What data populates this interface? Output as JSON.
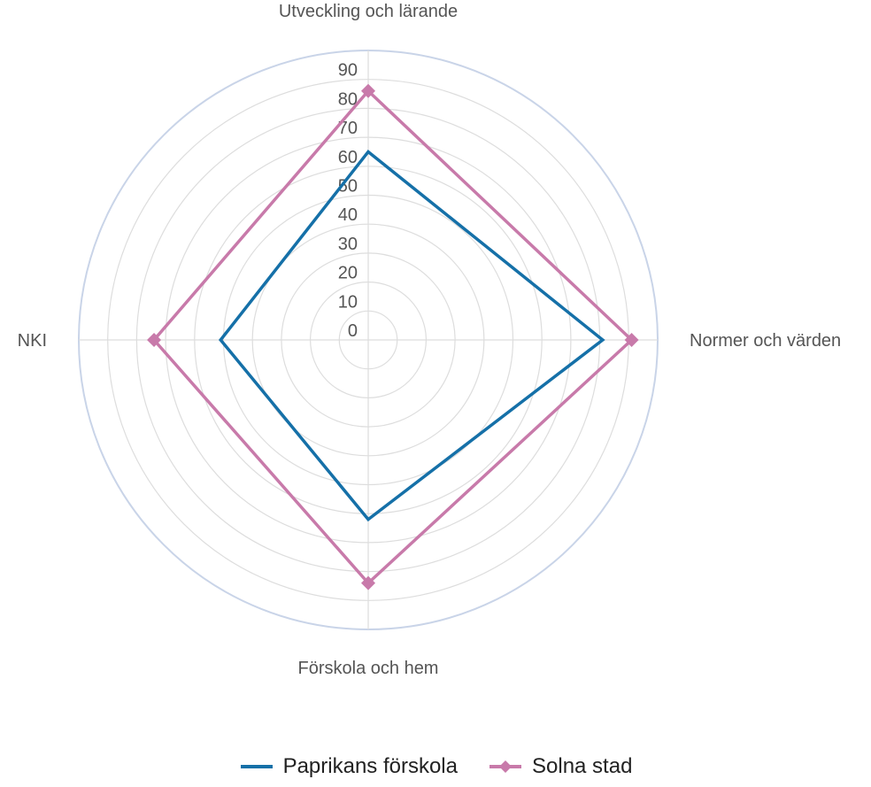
{
  "chart_data": {
    "type": "radar",
    "categories": [
      "Utveckling och lärande",
      "Normer och värden",
      "Förskola och hem",
      "NKI"
    ],
    "r_ticks": [
      0,
      10,
      20,
      30,
      40,
      50,
      60,
      70,
      80,
      90
    ],
    "r_range": [
      0,
      100
    ],
    "grid": true,
    "legend_position": "bottom",
    "series": [
      {
        "name": "Paprikans förskola",
        "values": [
          65,
          81,
          62,
          51
        ],
        "color": "#1570a8",
        "marker": "none"
      },
      {
        "name": "Solna stad",
        "values": [
          86,
          91,
          84,
          74
        ],
        "color": "#c87aaa",
        "marker": "diamond"
      }
    ],
    "colors": {
      "grid": "#dddddd",
      "outer_ring": "#c9d4e8",
      "text": "#555555"
    }
  }
}
